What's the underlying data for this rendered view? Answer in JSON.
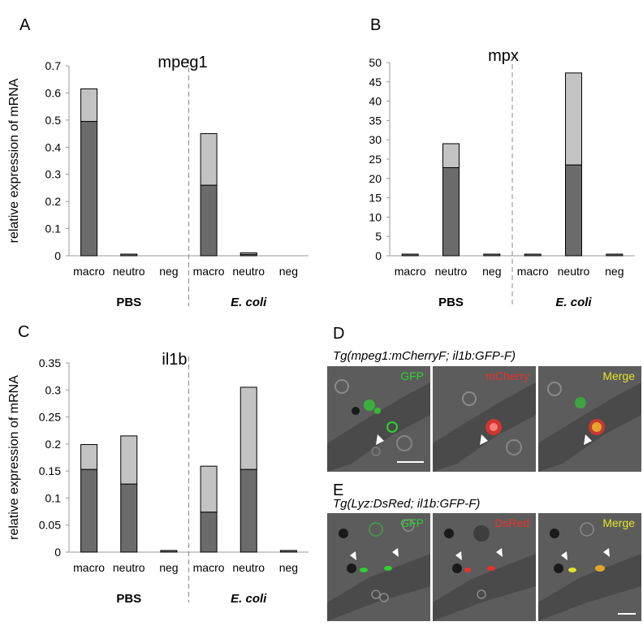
{
  "chart_data": [
    {
      "type": "bar",
      "panel": "A",
      "title": "mpeg1",
      "ylabel": "relative expression of  mRNA",
      "ylim": [
        0,
        0.7
      ],
      "yticks": [
        "0",
        "0.1",
        "0.2",
        "0.3",
        "0.4",
        "0.5",
        "0.6",
        "0.7"
      ],
      "categories": [
        "macro",
        "neutro",
        "neg",
        "macro",
        "neutro",
        "neg"
      ],
      "groups": [
        {
          "label": "PBS",
          "italic": false
        },
        {
          "label": "E. coli",
          "italic": true
        }
      ],
      "series": [
        {
          "values": [
            0.495,
            0.005,
            0.0,
            0.26,
            0.005,
            0.0
          ],
          "color": "#6b6b6b"
        },
        {
          "values": [
            0.12,
            0.0,
            0.0,
            0.19,
            0.002,
            0.0
          ],
          "color": "#c3c3c3"
        }
      ]
    },
    {
      "type": "bar",
      "panel": "B",
      "title": "mpx",
      "ylabel": "",
      "ylim": [
        0,
        50
      ],
      "yticks": [
        "0",
        "5",
        "10",
        "15",
        "20",
        "25",
        "30",
        "35",
        "40",
        "45",
        "50"
      ],
      "categories": [
        "macro",
        "neutro",
        "neg",
        "macro",
        "neutro",
        "neg"
      ],
      "groups": [
        {
          "label": "PBS",
          "italic": false
        },
        {
          "label": "E. coli",
          "italic": true
        }
      ],
      "series": [
        {
          "values": [
            0.2,
            22.8,
            0.1,
            0.1,
            23.5,
            0.1
          ],
          "color": "#6b6b6b"
        },
        {
          "values": [
            0.0,
            6.2,
            0.0,
            0.0,
            23.8,
            0.0
          ],
          "color": "#c3c3c3"
        }
      ]
    },
    {
      "type": "bar",
      "panel": "C",
      "title": "il1b",
      "ylabel": "relative expression of  mRNA",
      "ylim": [
        0,
        0.35
      ],
      "yticks": [
        "0",
        "0.05",
        "0.1",
        "0.15",
        "0.2",
        "0.25",
        "0.3",
        "0.35"
      ],
      "categories": [
        "macro",
        "neutro",
        "neg",
        "macro",
        "neutro",
        "neg"
      ],
      "groups": [
        {
          "label": "PBS",
          "italic": false
        },
        {
          "label": "E. coli",
          "italic": true
        }
      ],
      "series": [
        {
          "values": [
            0.153,
            0.126,
            0.003,
            0.074,
            0.153,
            0.003
          ],
          "color": "#6b6b6b"
        },
        {
          "values": [
            0.046,
            0.089,
            0.0,
            0.085,
            0.152,
            0.0
          ],
          "color": "#c3c3c3"
        }
      ]
    }
  ],
  "microscopy": {
    "D": {
      "letter": "D",
      "title": "Tg(mpeg1:mCherryF; il1b:GFP-F)",
      "panels": [
        {
          "label": "GFP",
          "color": "#2fd12f"
        },
        {
          "label": "mCherry",
          "color": "#e8322c"
        },
        {
          "label": "Merge",
          "color": "#e3e32a"
        }
      ]
    },
    "E": {
      "letter": "E",
      "title": "Tg(Lyz:DsRed; il1b:GFP-F)",
      "panels": [
        {
          "label": "GFP",
          "color": "#2fd12f"
        },
        {
          "label": "DsRed",
          "color": "#e8322c"
        },
        {
          "label": "Merge",
          "color": "#e3e32a"
        }
      ]
    }
  }
}
